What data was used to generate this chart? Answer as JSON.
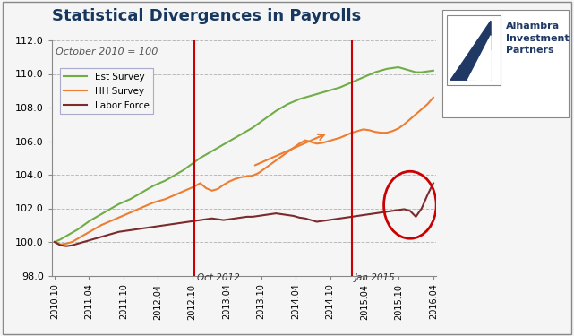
{
  "title": "Statistical Divergences in Payrolls",
  "subtitle": "October 2010 = 100",
  "ylim": [
    98.0,
    112.0
  ],
  "yticks": [
    98.0,
    100.0,
    102.0,
    104.0,
    106.0,
    108.0,
    110.0,
    112.0
  ],
  "background_color": "#f5f5f5",
  "plot_bg_color": "#f5f5f5",
  "title_color": "#17375e",
  "title_fontsize": 13,
  "subtitle_fontsize": 8,
  "grid_color": "#bbbbbb",
  "vline_color": "#cc0000",
  "vline_x1": 24,
  "vline_x2": 51,
  "vline_label1": "Oct 2012",
  "vline_label2": "Jan 2015",
  "series_est_label": "Est Survey",
  "series_hh_label": "HH Survey",
  "series_lf_label": "Labor Force",
  "series_est_color": "#70ad47",
  "series_hh_color": "#ed7d31",
  "series_lf_color": "#7b2b2b",
  "linewidth": 1.5,
  "est_survey": [
    100.0,
    100.15,
    100.35,
    100.55,
    100.75,
    101.0,
    101.25,
    101.45,
    101.65,
    101.85,
    102.05,
    102.25,
    102.4,
    102.55,
    102.75,
    102.95,
    103.15,
    103.35,
    103.5,
    103.65,
    103.85,
    104.05,
    104.25,
    104.5,
    104.75,
    105.0,
    105.2,
    105.4,
    105.6,
    105.8,
    106.0,
    106.2,
    106.4,
    106.6,
    106.8,
    107.05,
    107.3,
    107.55,
    107.8,
    108.0,
    108.2,
    108.35,
    108.5,
    108.6,
    108.7,
    108.8,
    108.9,
    109.0,
    109.1,
    109.2,
    109.35,
    109.5,
    109.65,
    109.8,
    109.95,
    110.1,
    110.2,
    110.3,
    110.35,
    110.4,
    110.3,
    110.2,
    110.1,
    110.1,
    110.15,
    110.2
  ],
  "hh_survey": [
    100.0,
    99.85,
    99.9,
    100.0,
    100.2,
    100.4,
    100.6,
    100.8,
    101.0,
    101.15,
    101.3,
    101.45,
    101.6,
    101.75,
    101.9,
    102.05,
    102.2,
    102.35,
    102.45,
    102.55,
    102.7,
    102.85,
    103.0,
    103.15,
    103.3,
    103.5,
    103.2,
    103.05,
    103.15,
    103.4,
    103.6,
    103.75,
    103.85,
    103.9,
    103.95,
    104.1,
    104.35,
    104.6,
    104.85,
    105.1,
    105.35,
    105.6,
    105.85,
    106.05,
    105.95,
    105.85,
    105.9,
    106.0,
    106.1,
    106.2,
    106.35,
    106.5,
    106.6,
    106.7,
    106.65,
    106.55,
    106.5,
    106.5,
    106.6,
    106.75,
    107.0,
    107.3,
    107.6,
    107.9,
    108.2,
    108.6
  ],
  "labor_force": [
    100.0,
    99.8,
    99.75,
    99.8,
    99.9,
    100.0,
    100.1,
    100.2,
    100.3,
    100.4,
    100.5,
    100.6,
    100.65,
    100.7,
    100.75,
    100.8,
    100.85,
    100.9,
    100.95,
    101.0,
    101.05,
    101.1,
    101.15,
    101.2,
    101.25,
    101.3,
    101.35,
    101.4,
    101.35,
    101.3,
    101.35,
    101.4,
    101.45,
    101.5,
    101.5,
    101.55,
    101.6,
    101.65,
    101.7,
    101.65,
    101.6,
    101.55,
    101.45,
    101.4,
    101.3,
    101.2,
    101.25,
    101.3,
    101.35,
    101.4,
    101.45,
    101.5,
    101.55,
    101.6,
    101.65,
    101.7,
    101.75,
    101.8,
    101.85,
    101.9,
    101.95,
    101.85,
    101.5,
    102.0,
    102.8,
    103.5
  ],
  "xtick_labels": [
    "2010.10",
    "2011.04",
    "2011.10",
    "2012.04",
    "2012.10",
    "2013.04",
    "2013.10",
    "2014.04",
    "2014.10",
    "2015.04",
    "2015.10",
    "2016.04"
  ],
  "logo_text1": "Alhambra",
  "logo_text2": "Investment",
  "logo_text3": "Partners"
}
